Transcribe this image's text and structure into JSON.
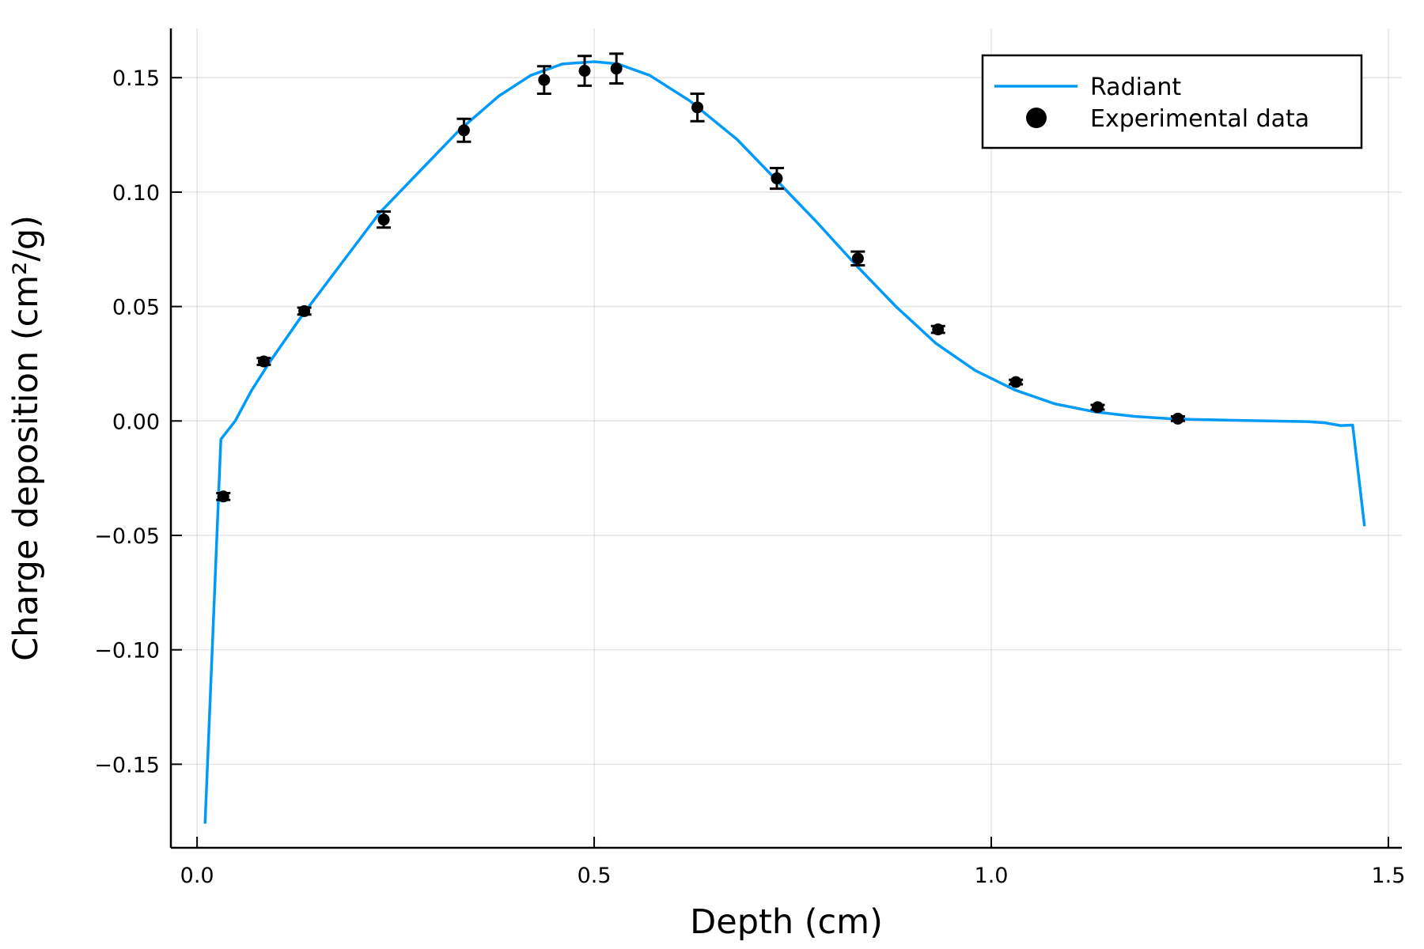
{
  "chart_data": {
    "type": "line",
    "xlabel": "Depth (cm)",
    "ylabel": "Charge deposition (cm²/g)",
    "xlim": [
      -0.033,
      1.517
    ],
    "ylim": [
      -0.1865,
      0.1715
    ],
    "grid": true,
    "legend_position": "top-right",
    "x_ticks": [
      {
        "value": 0.0,
        "label": "0.0"
      },
      {
        "value": 0.5,
        "label": "0.5"
      },
      {
        "value": 1.0,
        "label": "1.0"
      },
      {
        "value": 1.5,
        "label": "1.5"
      }
    ],
    "y_ticks": [
      {
        "value": -0.15,
        "label": "−0.15"
      },
      {
        "value": -0.1,
        "label": "−0.10"
      },
      {
        "value": -0.05,
        "label": "−0.05"
      },
      {
        "value": 0.0,
        "label": "0.00"
      },
      {
        "value": 0.05,
        "label": "0.05"
      },
      {
        "value": 0.1,
        "label": "0.10"
      },
      {
        "value": 0.15,
        "label": "0.15"
      }
    ],
    "series": [
      {
        "name": "Radiant",
        "kind": "line",
        "color": "#009af9",
        "x": [
          0.01,
          0.03,
          0.048,
          0.068,
          0.09,
          0.13,
          0.18,
          0.23,
          0.28,
          0.33,
          0.38,
          0.42,
          0.46,
          0.5,
          0.53,
          0.57,
          0.62,
          0.68,
          0.73,
          0.78,
          0.83,
          0.88,
          0.93,
          0.98,
          1.03,
          1.08,
          1.13,
          1.18,
          1.23,
          1.3,
          1.4,
          1.42,
          1.44,
          1.455,
          1.47
        ],
        "y": [
          -0.176,
          -0.008,
          0.0,
          0.013,
          0.025,
          0.045,
          0.068,
          0.091,
          0.109,
          0.127,
          0.142,
          0.151,
          0.156,
          0.157,
          0.156,
          0.151,
          0.14,
          0.123,
          0.105,
          0.087,
          0.068,
          0.05,
          0.034,
          0.022,
          0.0135,
          0.0075,
          0.004,
          0.002,
          0.0009,
          0.0003,
          -0.0003,
          -0.0008,
          -0.002,
          -0.0018,
          -0.046
        ]
      },
      {
        "name": "Experimental data",
        "kind": "scatter",
        "color": "#000000",
        "x": [
          0.033,
          0.084,
          0.135,
          0.235,
          0.336,
          0.437,
          0.488,
          0.528,
          0.63,
          0.73,
          0.832,
          0.933,
          1.031,
          1.134,
          1.235
        ],
        "y": [
          -0.033,
          0.026,
          0.048,
          0.088,
          0.127,
          0.149,
          0.153,
          0.154,
          0.137,
          0.106,
          0.071,
          0.04,
          0.017,
          0.006,
          0.001
        ],
        "error": [
          0.0015,
          0.0015,
          0.0015,
          0.0035,
          0.005,
          0.006,
          0.0065,
          0.0065,
          0.006,
          0.0045,
          0.003,
          0.0015,
          0.001,
          0.001,
          0.001
        ]
      }
    ]
  }
}
